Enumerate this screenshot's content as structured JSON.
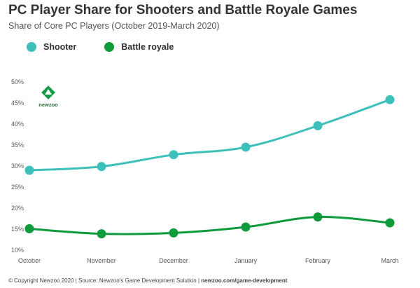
{
  "colors": {
    "shooter": "#3dbfba",
    "battle_royale": "#0f9a3c",
    "logo_green": "#119a43"
  },
  "logo": {
    "text": "newzoo",
    "icon": "newzoo-logo-icon"
  },
  "footer": {
    "copyright": "© Copyright Newzoo 2020 | Source: Newzoo's Game Development Solution | ",
    "url": "newzoo.com/game-development"
  },
  "chart_data": {
    "type": "line",
    "title": "PC Player Share for Shooters and Battle Royale Games",
    "subtitle": "Share of Core PC Players (October 2019-March 2020)",
    "categories": [
      "October",
      "November",
      "December",
      "January",
      "February",
      "March"
    ],
    "series": [
      {
        "name": "Shooter",
        "values": [
          29,
          29.9,
          32.7,
          34.5,
          39.6,
          45.8
        ]
      },
      {
        "name": "Battle royale",
        "values": [
          15.1,
          13.9,
          14.1,
          15.5,
          17.9,
          16.5
        ]
      }
    ],
    "ylim": [
      10,
      50
    ],
    "yticks": [
      "10%",
      "15%",
      "20%",
      "25%",
      "30%",
      "35%",
      "40%",
      "45%",
      "50%"
    ],
    "ytick_values": [
      10,
      15,
      20,
      25,
      30,
      35,
      40,
      45,
      50
    ],
    "xlabel": "",
    "ylabel": "",
    "grid": false,
    "legend": "top-left"
  }
}
